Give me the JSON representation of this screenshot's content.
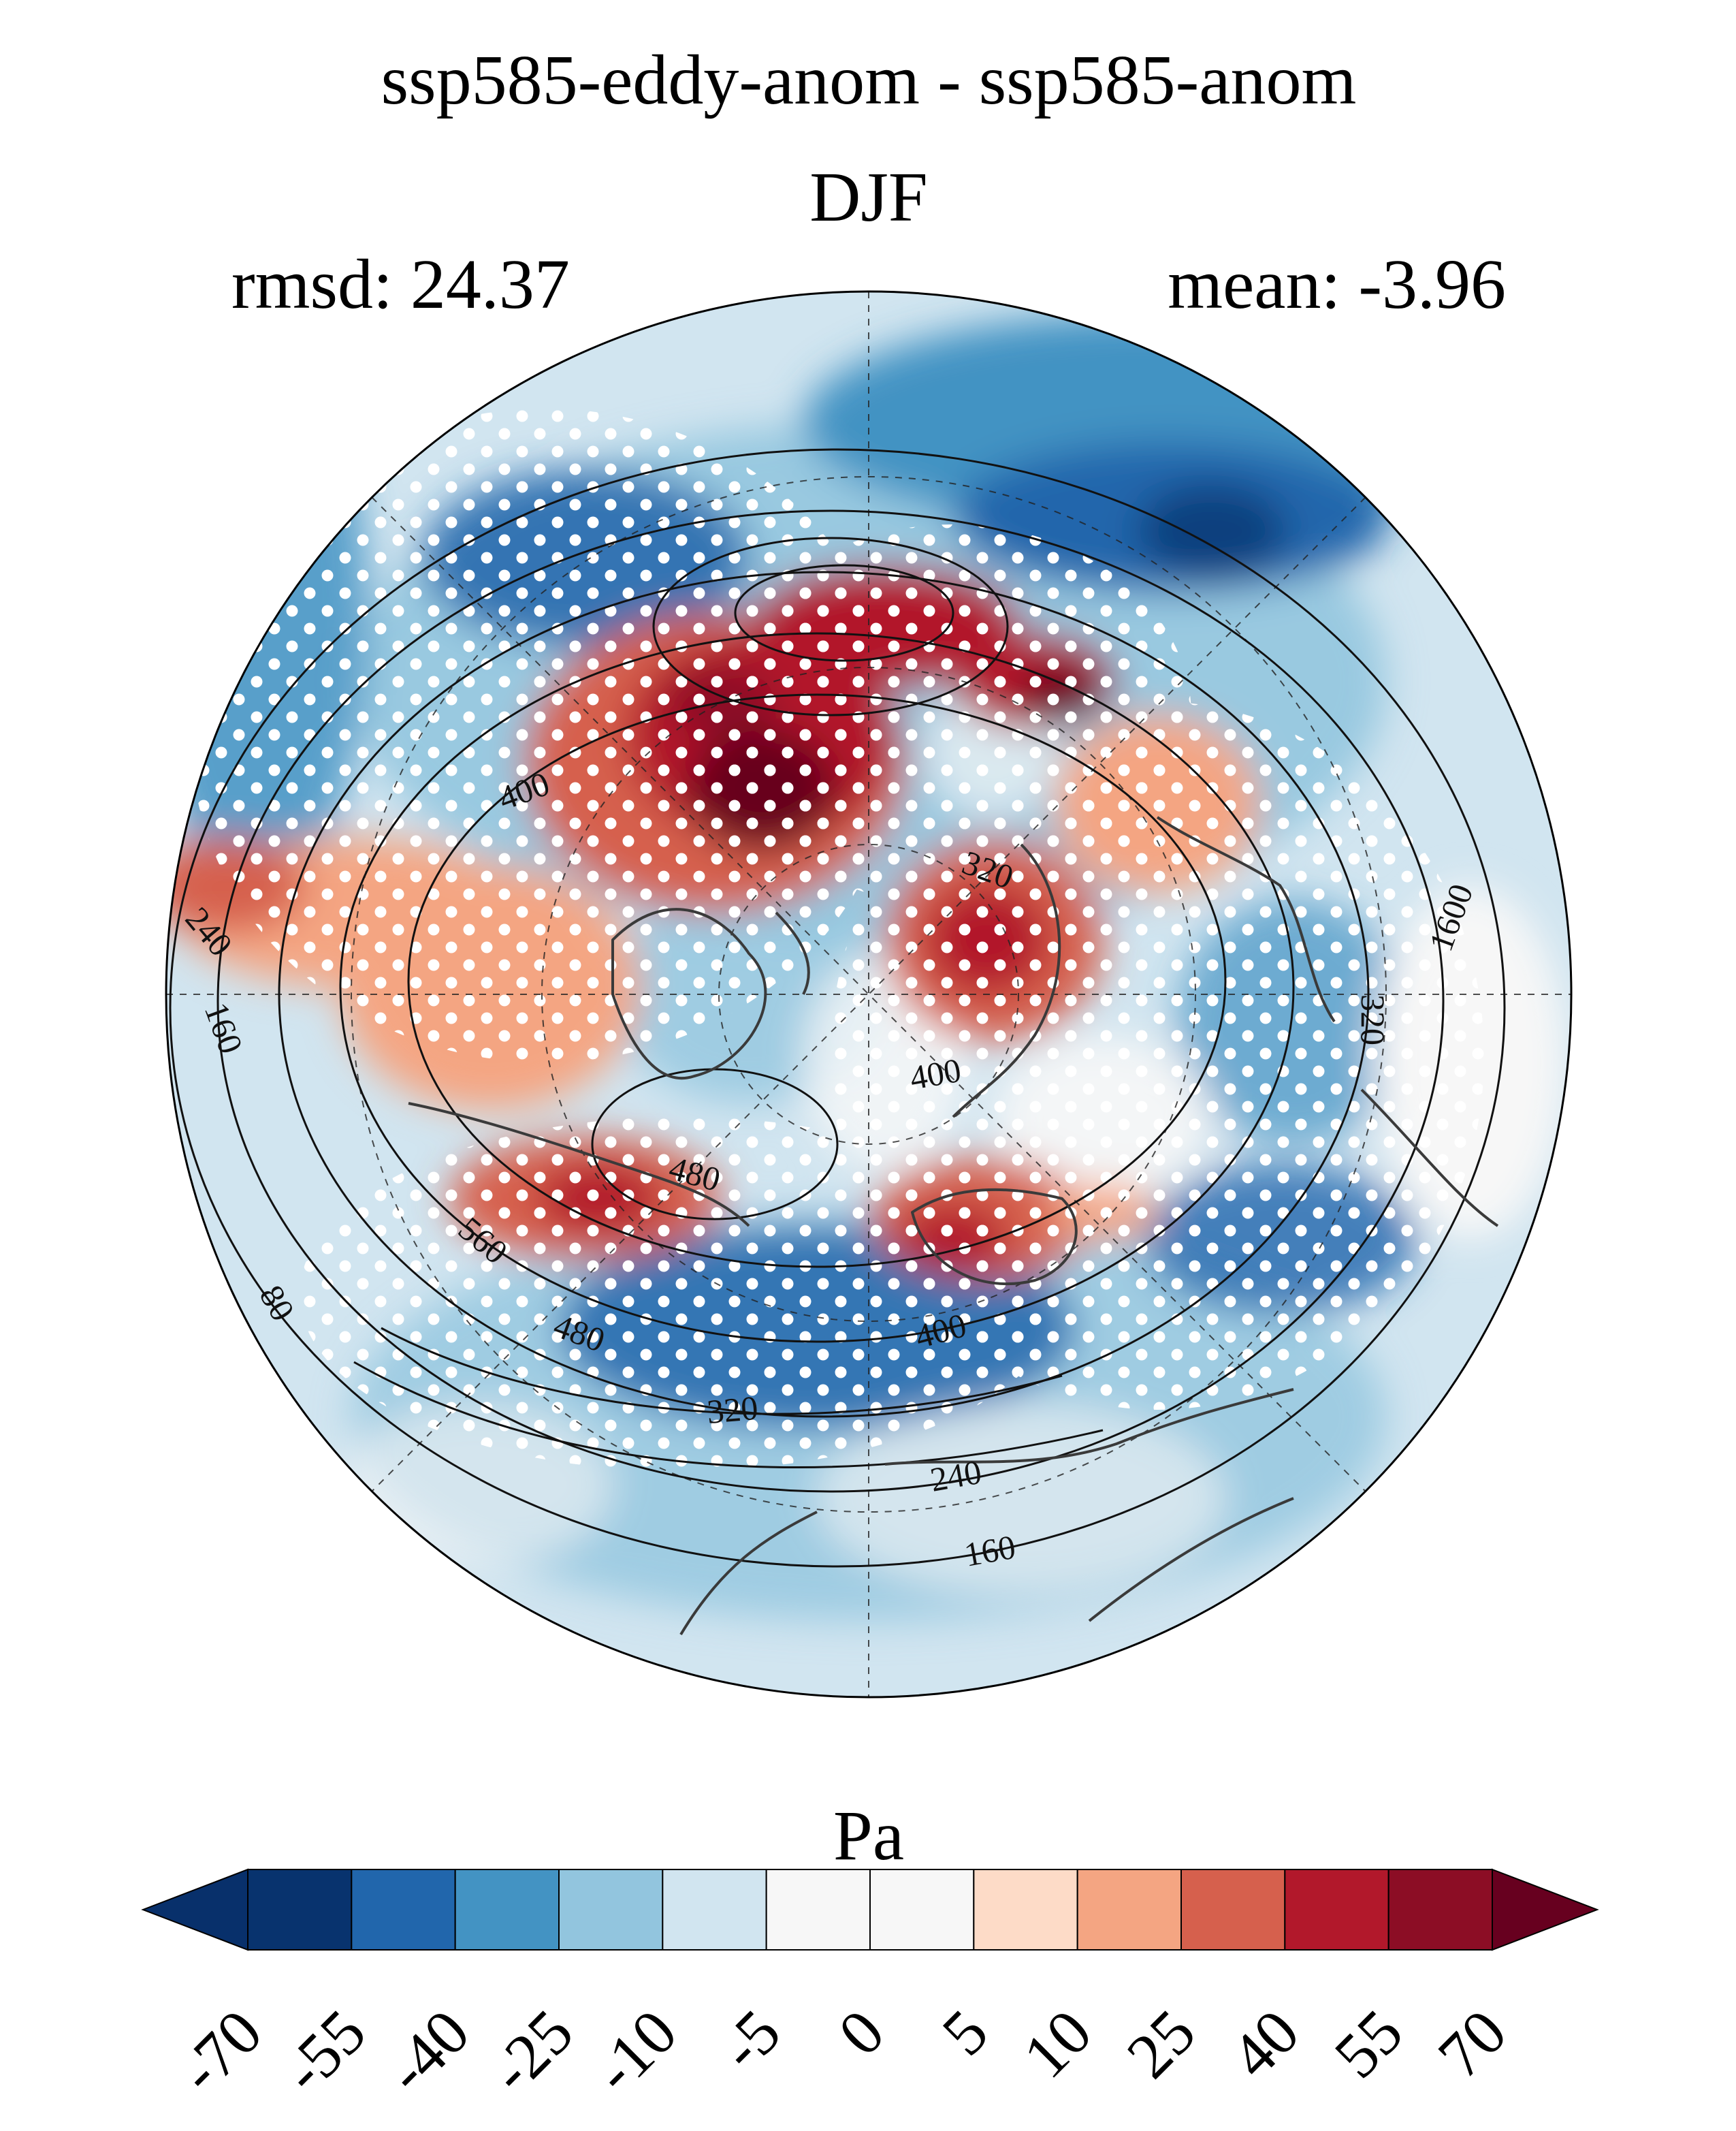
{
  "header": {
    "title": "ssp585-eddy-anom - ssp585-anom",
    "season": "DJF",
    "rmsd": "rmsd: 24.37",
    "mean": "mean: -3.96"
  },
  "contour_labels": [
    "400",
    "320",
    "240",
    "160",
    "400",
    "480",
    "560",
    "80",
    "480",
    "320",
    "400",
    "240",
    "160",
    "1600",
    "320"
  ],
  "colorbar": {
    "unit": "Pa",
    "ticks": [
      "-70",
      "-55",
      "-40",
      "-25",
      "-10",
      "-5",
      "0",
      "5",
      "10",
      "25",
      "40",
      "55",
      "70"
    ],
    "colors": [
      "#08306b",
      "#08336e",
      "#2166ac",
      "#4393c3",
      "#92c5de",
      "#d1e5f0",
      "#f7f7f7",
      "#f7f7f7",
      "#fddbc7",
      "#f4a582",
      "#d6604d",
      "#b2182b",
      "#8c0d25",
      "#67001f"
    ]
  },
  "map": {
    "projection": "north polar stereographic",
    "stippling": "white dots mark significant areas",
    "colors": {
      "border": "#000000",
      "coast": "#3a3a3a",
      "contour": "#111111",
      "stipple": "#ffffff"
    }
  }
}
